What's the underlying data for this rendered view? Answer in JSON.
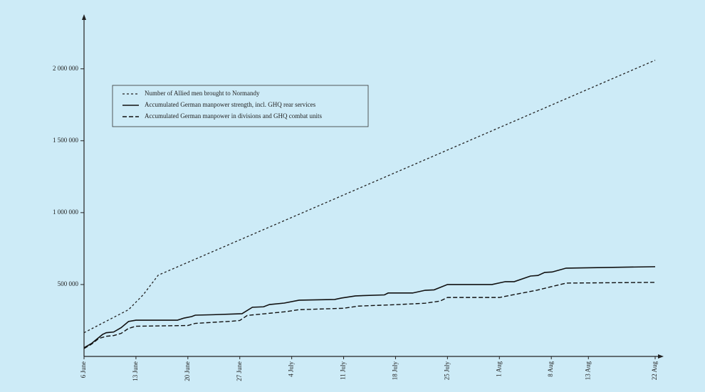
{
  "chart_data": {
    "type": "line",
    "series": [
      {
        "name": "Number of Allied men brought to Normandy",
        "color": "#222222",
        "dash": "3,3",
        "width": 1.3,
        "x": [
          0,
          6,
          8,
          10,
          77
        ],
        "values": [
          165000,
          325000,
          430000,
          565000,
          2060000
        ]
      },
      {
        "name": "Accumulated German manpower strength, incl. GHQ rear services",
        "color": "#111111",
        "dash": "none",
        "width": 1.6,
        "x": [
          0,
          1,
          2.5,
          3,
          4,
          5,
          6,
          7,
          12.6,
          13.5,
          14.5,
          15,
          17.4,
          21.3,
          22.7,
          24.2,
          25,
          27,
          29,
          33.8,
          34.7,
          36.6,
          40.5,
          41,
          44.3,
          46,
          47.2,
          49,
          55,
          56.8,
          58,
          60.2,
          61.2,
          62.1,
          63.1,
          65,
          77
        ],
        "values": [
          60000,
          90000,
          153000,
          165000,
          170000,
          200000,
          243000,
          252000,
          252000,
          267000,
          277000,
          287000,
          290000,
          297000,
          342000,
          345000,
          361000,
          371000,
          391000,
          396000,
          406000,
          421000,
          428000,
          441000,
          441000,
          460000,
          463000,
          500000,
          500000,
          520000,
          520000,
          559000,
          563000,
          584000,
          587000,
          614000,
          624000
        ]
      },
      {
        "name": "Accumulated German manpower in divisions and GHQ combat units",
        "color": "#111111",
        "dash": "6,3",
        "width": 1.4,
        "x": [
          0,
          1,
          2,
          3,
          4,
          5,
          6,
          7,
          14,
          15,
          20,
          21,
          22,
          24,
          27,
          29,
          35,
          37,
          42,
          46,
          48,
          49,
          56,
          58,
          61,
          63,
          65,
          77
        ],
        "values": [
          55000,
          85000,
          125000,
          140000,
          145000,
          160000,
          195000,
          210000,
          215000,
          230000,
          245000,
          250000,
          285000,
          295000,
          310000,
          325000,
          335000,
          350000,
          360000,
          370000,
          385000,
          410000,
          410000,
          430000,
          460000,
          485000,
          510000,
          515000
        ]
      }
    ],
    "xlim": [
      0,
      77
    ],
    "xticks": [
      {
        "value": 0,
        "label": "6 June"
      },
      {
        "value": 7,
        "label": "13 June"
      },
      {
        "value": 14,
        "label": "20 June"
      },
      {
        "value": 21,
        "label": "27 June"
      },
      {
        "value": 28,
        "label": "4 July"
      },
      {
        "value": 35,
        "label": "11 July"
      },
      {
        "value": 42,
        "label": "18 July"
      },
      {
        "value": 49,
        "label": "25 July"
      },
      {
        "value": 56,
        "label": "1 Aug"
      },
      {
        "value": 63,
        "label": "8 Aug"
      },
      {
        "value": 68,
        "label": "13 Aug"
      },
      {
        "value": 77,
        "label": "22 Aug"
      }
    ],
    "ylim": [
      0,
      2350000
    ],
    "yticks": [
      {
        "value": 500000,
        "label": "500 000"
      },
      {
        "value": 1000000,
        "label": "1 000 000"
      },
      {
        "value": 1500000,
        "label": "1 500 000"
      },
      {
        "value": 2000000,
        "label": "2 000 000"
      }
    ]
  }
}
